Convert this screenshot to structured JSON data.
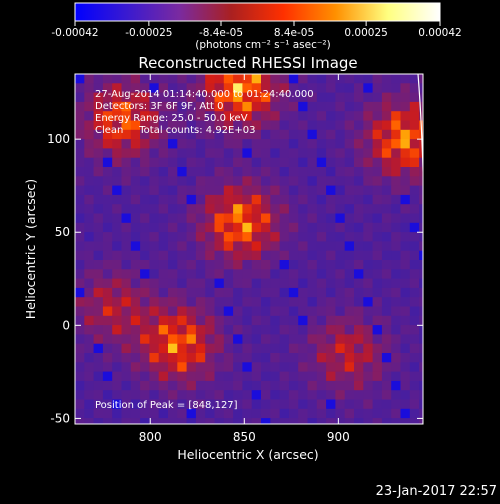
{
  "colorbar": {
    "ticks": [
      "-0.00042",
      "-0.00025",
      "-8.4e-05",
      "8.4e-05",
      "0.00025",
      "0.00042"
    ],
    "tick_values": [
      -0.00042,
      -0.00025,
      -8.4e-05,
      8.4e-05,
      0.00025,
      0.00042
    ],
    "unit_label": "(photons cm⁻² s⁻¹ asec⁻²)",
    "stops": [
      "#0000ff",
      "#3a1ad0",
      "#7a2aa0",
      "#aa2020",
      "#ff3000",
      "#ff9000",
      "#ffff80",
      "#ffffff"
    ]
  },
  "chart_data": {
    "type": "heatmap",
    "title": "Reconstructed RHESSI Image",
    "xlabel": "Heliocentric X (arcsec)",
    "ylabel": "Heliocentric Y (arcsec)",
    "xlim": [
      760,
      945
    ],
    "ylim": [
      -53,
      135
    ],
    "xticks": [
      800,
      850,
      900
    ],
    "yticks": [
      -50,
      0,
      50,
      100
    ],
    "xtick_labels": [
      "800",
      "850",
      "900"
    ],
    "ytick_labels": [
      "-50",
      "0",
      "50",
      "100"
    ],
    "annotations": {
      "time": "27-Aug-2014 01:14:40.000 to 01:24:40.000",
      "detectors": "Detectors: 3F 6F 9F, Att 0",
      "energy": "Energy Range: 25.0 - 50.0 keV",
      "method": "Clean     Total counts: 4.92E+03",
      "peak": "Position of Peak = [848,127]"
    },
    "sources": [
      {
        "x": 848,
        "y": 127,
        "intensity": 1.0
      },
      {
        "x": 935,
        "y": 100,
        "intensity": 0.9
      },
      {
        "x": 785,
        "y": 110,
        "intensity": 0.8
      },
      {
        "x": 848,
        "y": 55,
        "intensity": 0.9
      },
      {
        "x": 815,
        "y": -10,
        "intensity": 0.85
      },
      {
        "x": 905,
        "y": -15,
        "intensity": 0.55
      },
      {
        "x": 780,
        "y": 10,
        "intensity": 0.5
      }
    ]
  },
  "footer": {
    "timestamp": "23-Jan-2017 22:57"
  }
}
